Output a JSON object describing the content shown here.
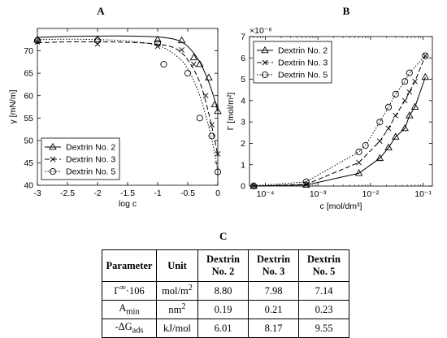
{
  "chart_data": [
    {
      "panel": "A",
      "type": "line",
      "xlabel": "log c",
      "ylabel": "γ [mN/m]",
      "xlim": [
        -3,
        0
      ],
      "ylim": [
        40,
        75
      ],
      "xticks": [
        "-3",
        "-2.5",
        "-2",
        "-1.5",
        "-1",
        "-0.5",
        "0"
      ],
      "xtick_values": [
        -3,
        -2.5,
        -2,
        -1.5,
        -1,
        -0.5,
        0
      ],
      "yticks": [
        "40",
        "45",
        "50",
        "55",
        "60",
        "65",
        "70"
      ],
      "ytick_values": [
        40,
        45,
        50,
        55,
        60,
        65,
        70
      ],
      "legend_position": "bottom-left",
      "series": [
        {
          "name": "Dextrin No. 2",
          "marker": "triangle",
          "line": "solid",
          "x": [
            -3,
            -2,
            -1,
            -0.6,
            -0.4,
            -0.3,
            -0.15,
            -0.05,
            0
          ],
          "y": [
            72.5,
            72.5,
            72.5,
            72.3,
            68.5,
            67,
            64,
            58,
            56.5
          ],
          "fit_x": [
            -3,
            -2.5,
            -2,
            -1.5,
            -1,
            -0.7,
            -0.5,
            -0.3,
            -0.15,
            -0.05,
            0
          ],
          "fit_y": [
            73,
            73.2,
            73.3,
            73.3,
            73.1,
            72.5,
            71,
            67.5,
            63,
            59,
            56.5
          ]
        },
        {
          "name": "Dextrin No. 3",
          "marker": "x",
          "line": "dashed",
          "x": [
            -3,
            -2,
            -1,
            -0.6,
            -0.4,
            -0.2,
            -0.1,
            0
          ],
          "y": [
            72,
            71.5,
            71,
            70.2,
            67,
            60,
            53.5,
            47
          ],
          "fit_x": [
            -3,
            -2.5,
            -2,
            -1.5,
            -1,
            -0.7,
            -0.5,
            -0.3,
            -0.15,
            -0.05,
            0
          ],
          "fit_y": [
            71.8,
            72,
            72,
            71.9,
            71.5,
            70.5,
            68,
            63,
            56,
            50,
            46.5
          ]
        },
        {
          "name": "Dextrin No. 5",
          "marker": "circle",
          "line": "dotted",
          "x": [
            -3,
            -2,
            -1,
            -0.9,
            -0.5,
            -0.3,
            -0.1,
            0
          ],
          "y": [
            72.3,
            72.3,
            71.7,
            67,
            65,
            55,
            51,
            43
          ],
          "fit_x": [
            -3,
            -2.5,
            -2,
            -1.5,
            -1,
            -0.7,
            -0.5,
            -0.3,
            -0.15,
            -0.05,
            0
          ],
          "fit_y": [
            72.5,
            72.6,
            72.5,
            72.2,
            71.2,
            69,
            66,
            60,
            53,
            47,
            43
          ]
        }
      ]
    },
    {
      "panel": "B",
      "type": "line",
      "xlabel": "c [mol/dm³]",
      "ylabel": "Γ [mol/m²]",
      "y_multiplier": "×10⁻⁶",
      "xscale": "log",
      "xlim": [
        5e-05,
        0.15
      ],
      "ylim": [
        0,
        7
      ],
      "xticks": [
        "10⁻⁴",
        "10⁻³",
        "10⁻²",
        "10⁻¹"
      ],
      "xtick_values": [
        0.0001,
        0.001,
        0.01,
        0.1
      ],
      "yticks": [
        "0",
        "1",
        "2",
        "3",
        "4",
        "5",
        "6",
        "7"
      ],
      "ytick_values": [
        0,
        1,
        2,
        3,
        4,
        5,
        6,
        7
      ],
      "legend_position": "top-left",
      "series": [
        {
          "name": "Dextrin No. 2",
          "marker": "triangle",
          "line": "solid",
          "x": [
            6e-05,
            0.0006,
            0.006,
            0.015,
            0.022,
            0.03,
            0.045,
            0.055,
            0.07,
            0.11
          ],
          "y": [
            0,
            0.05,
            0.6,
            1.3,
            1.8,
            2.3,
            2.7,
            3.3,
            3.7,
            5.1
          ]
        },
        {
          "name": "Dextrin No. 3",
          "marker": "x",
          "line": "dashed",
          "x": [
            6e-05,
            0.0006,
            0.006,
            0.015,
            0.022,
            0.03,
            0.045,
            0.055,
            0.07,
            0.11
          ],
          "y": [
            0,
            0.08,
            1.1,
            2.1,
            2.7,
            3.3,
            4.0,
            4.4,
            4.9,
            6.1
          ]
        },
        {
          "name": "Dextrin No. 5",
          "marker": "circle",
          "line": "dotted",
          "x": [
            6e-05,
            0.0006,
            0.006,
            0.008,
            0.015,
            0.022,
            0.03,
            0.045,
            0.055,
            0.11
          ],
          "y": [
            0,
            0.2,
            1.6,
            1.9,
            3.0,
            3.7,
            4.3,
            4.9,
            5.3,
            6.1
          ]
        }
      ]
    },
    {
      "panel": "C",
      "type": "table",
      "columns": [
        "Parameter",
        "Unit",
        "Dextrin No. 2",
        "Dextrin No. 3",
        "Dextrin No. 5"
      ],
      "rows": [
        [
          "Γ∞·106",
          "mol/m²",
          "8.80",
          "7.98",
          "7.14"
        ],
        [
          "Amin",
          "nm²",
          "0.19",
          "0.21",
          "0.23"
        ],
        [
          "-ΔGads",
          "kJ/mol",
          "6.01",
          "8.17",
          "9.55"
        ]
      ]
    }
  ],
  "table": {
    "headers": {
      "parameter": "Parameter",
      "unit": "Unit",
      "d2": [
        "Dextrin",
        "No. 2"
      ],
      "d3": [
        "Dextrin",
        "No. 3"
      ],
      "d5": [
        "Dextrin",
        "No. 5"
      ]
    },
    "rows": [
      {
        "param_main": "Γ",
        "param_sup": "∞",
        "param_rest": "·106",
        "unit_main": "mol/m",
        "unit_sup": "2",
        "v2": "8.80",
        "v3": "7.98",
        "v5": "7.14"
      },
      {
        "param_main": "A",
        "param_sub": "min",
        "unit_main": "nm",
        "unit_sup": "2",
        "v2": "0.19",
        "v3": "0.21",
        "v5": "0.23"
      },
      {
        "param_main": "-ΔG",
        "param_sub": "ads",
        "unit_main": "kJ/mol",
        "v2": "6.01",
        "v3": "8.17",
        "v5": "9.55"
      }
    ]
  },
  "labels": {
    "a": "A",
    "b": "B",
    "c": "C"
  }
}
